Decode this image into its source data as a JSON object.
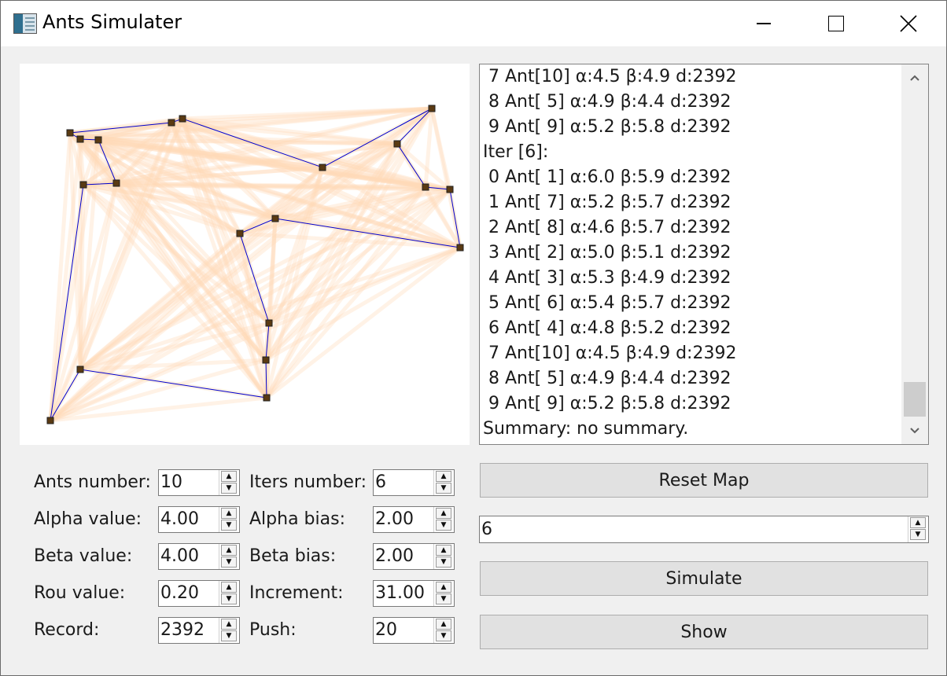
{
  "window": {
    "title": "Ants Simulater",
    "app_icon": "simulator-app-icon",
    "controls": {
      "minimize": "minimize-icon",
      "maximize": "maximize-icon",
      "close": "close-icon"
    }
  },
  "map": {
    "route_color": "#0000cc",
    "node_color": "#5a3a12",
    "pheromone_color": "#ffd9b8"
  },
  "log": {
    "lines": [
      " 7 Ant[10] α:4.5 β:4.9 d:2392",
      " 8 Ant[ 5] α:4.9 β:4.4 d:2392",
      " 9 Ant[ 9] α:5.2 β:5.8 d:2392",
      "Iter [6]:",
      " 0 Ant[ 1] α:6.0 β:5.9 d:2392",
      " 1 Ant[ 7] α:5.2 β:5.7 d:2392",
      " 2 Ant[ 8] α:4.6 β:5.7 d:2392",
      " 3 Ant[ 2] α:5.0 β:5.1 d:2392",
      " 4 Ant[ 3] α:5.3 β:4.9 d:2392",
      " 5 Ant[ 6] α:5.4 β:5.7 d:2392",
      " 6 Ant[ 4] α:4.8 β:5.2 d:2392",
      " 7 Ant[10] α:4.5 β:4.9 d:2392",
      " 8 Ant[ 5] α:4.9 β:4.4 d:2392",
      " 9 Ant[ 9] α:5.2 β:5.8 d:2392",
      "Summary: no summary."
    ],
    "scroll_up_icon": "chevron-up-icon",
    "scroll_down_icon": "chevron-down-icon"
  },
  "params": {
    "ants_number": {
      "label": "Ants number:",
      "value": "10"
    },
    "alpha_value": {
      "label": "Alpha value:",
      "value": "4.00"
    },
    "beta_value": {
      "label": "Beta value:",
      "value": "4.00"
    },
    "rou_value": {
      "label": "Rou value:",
      "value": "0.20"
    },
    "record": {
      "label": "Record:",
      "value": "2392"
    },
    "iters_number": {
      "label": "Iters number:",
      "value": "6"
    },
    "alpha_bias": {
      "label": "Alpha bias:",
      "value": "2.00"
    },
    "beta_bias": {
      "label": "Beta bias:",
      "value": "2.00"
    },
    "increment": {
      "label": "Increment:",
      "value": "31.00"
    },
    "push": {
      "label": "Push:",
      "value": "20"
    }
  },
  "controls": {
    "reset_map": "Reset Map",
    "iteration_value": "6",
    "simulate": "Simulate",
    "show": "Show"
  }
}
